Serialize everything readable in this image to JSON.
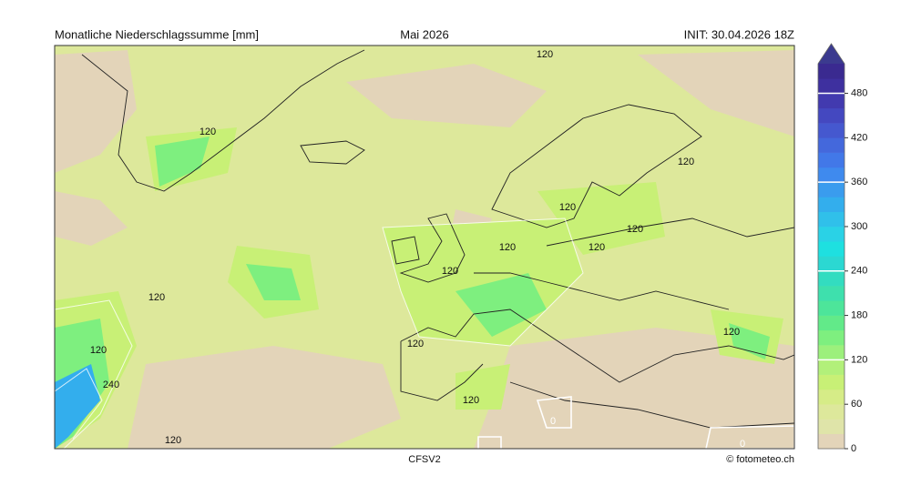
{
  "header": {
    "left": "Monatliche Niederschlagssumme [mm]",
    "center": "Mai 2026",
    "right": "INIT: 30.04.2026 18Z"
  },
  "footer": {
    "model": "CFSV2",
    "credit": "© fotometeo.ch"
  },
  "contour_labels": [
    "120",
    "120",
    "120",
    "120",
    "120",
    "120",
    "120",
    "120",
    "120",
    "120",
    "120",
    "120",
    "240",
    "120",
    "120",
    "0",
    "0"
  ],
  "colorbar": {
    "lim": [
      0,
      520
    ],
    "ticks": [
      0,
      60,
      120,
      180,
      240,
      300,
      360,
      420,
      480
    ],
    "colors": [
      "#e3d4b9",
      "#dfe4a9",
      "#dde89b",
      "#d6ec87",
      "#c8f076",
      "#b2f07a",
      "#9cf07c",
      "#7eef7f",
      "#62ea89",
      "#4de59a",
      "#3ee0ad",
      "#33dcc0",
      "#2bd8d2",
      "#1ee0e0",
      "#2ad2e6",
      "#30c0ea",
      "#33aeed",
      "#3a9cee",
      "#3f8aee",
      "#4278e8",
      "#4468dc",
      "#4558cf",
      "#4448c0",
      "#423aaf",
      "#3e309f",
      "#3a2a90"
    ],
    "extend_color": "#3b3a8f"
  }
}
